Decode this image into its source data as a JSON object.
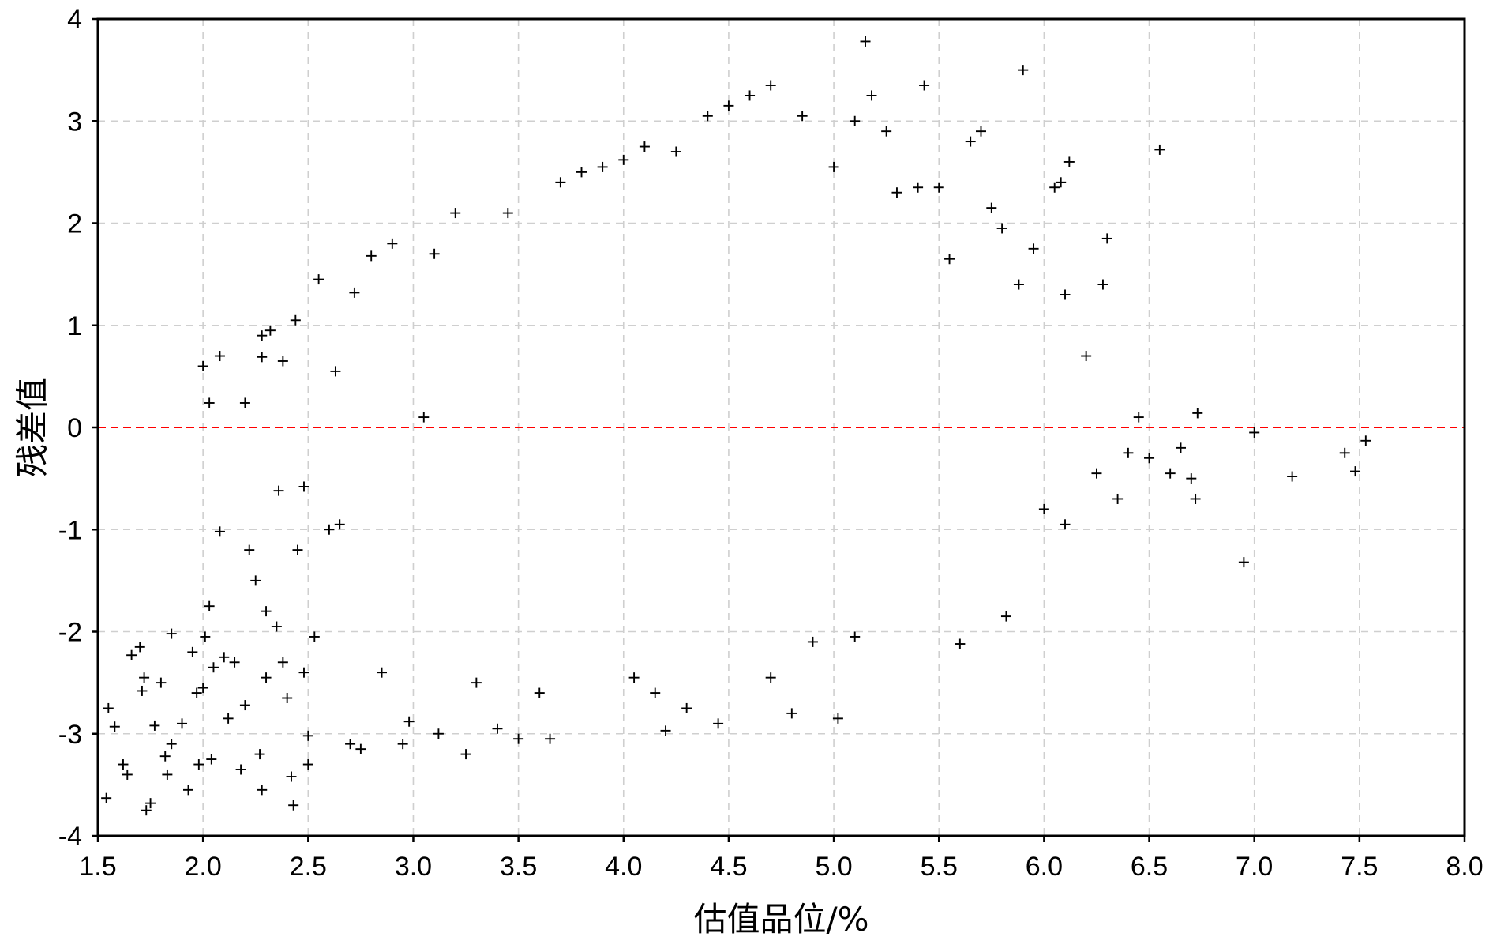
{
  "chart_data": {
    "type": "scatter",
    "title": "",
    "xlabel": "估值品位/%",
    "ylabel": "残差值",
    "xlim": [
      1.5,
      8.0
    ],
    "ylim": [
      -4,
      4
    ],
    "xticks": [
      "1.5",
      "2.0",
      "2.5",
      "3.0",
      "3.5",
      "4.0",
      "4.5",
      "5.0",
      "5.5",
      "6.0",
      "6.5",
      "7.0",
      "7.5",
      "8.0"
    ],
    "yticks": [
      "4",
      "3",
      "2",
      "1",
      "0",
      "-1",
      "-2",
      "-3",
      "-4"
    ],
    "grid": true,
    "marker": "+",
    "reference_line": {
      "y": 0,
      "color": "#ff0000",
      "style": "dashed"
    },
    "series": [
      {
        "values_note_free": true,
        "points": [
          [
            1.54,
            -3.63
          ],
          [
            1.55,
            -2.75
          ],
          [
            1.58,
            -2.93
          ],
          [
            1.62,
            -3.3
          ],
          [
            1.64,
            -3.4
          ],
          [
            1.66,
            -2.23
          ],
          [
            1.7,
            -2.15
          ],
          [
            1.71,
            -2.58
          ],
          [
            1.72,
            -2.45
          ],
          [
            1.73,
            -3.75
          ],
          [
            1.75,
            -3.68
          ],
          [
            1.77,
            -2.92
          ],
          [
            1.8,
            -2.5
          ],
          [
            1.82,
            -3.22
          ],
          [
            1.83,
            -3.4
          ],
          [
            1.85,
            -3.1
          ],
          [
            1.85,
            -2.02
          ],
          [
            1.9,
            -2.9
          ],
          [
            1.93,
            -3.55
          ],
          [
            1.95,
            -2.2
          ],
          [
            1.97,
            -2.6
          ],
          [
            1.98,
            -3.3
          ],
          [
            2.0,
            -2.55
          ],
          [
            2.0,
            0.6
          ],
          [
            2.01,
            -2.05
          ],
          [
            2.03,
            -1.75
          ],
          [
            2.03,
            0.24
          ],
          [
            2.04,
            -3.25
          ],
          [
            2.05,
            -2.35
          ],
          [
            2.08,
            0.7
          ],
          [
            2.08,
            -1.02
          ],
          [
            2.1,
            -2.25
          ],
          [
            2.12,
            -2.85
          ],
          [
            2.15,
            -2.3
          ],
          [
            2.18,
            -3.35
          ],
          [
            2.2,
            -2.72
          ],
          [
            2.2,
            0.24
          ],
          [
            2.22,
            -1.2
          ],
          [
            2.25,
            -1.5
          ],
          [
            2.27,
            -3.2
          ],
          [
            2.28,
            -3.55
          ],
          [
            2.3,
            -1.8
          ],
          [
            2.3,
            -2.45
          ],
          [
            2.28,
            0.69
          ],
          [
            2.28,
            0.9
          ],
          [
            2.32,
            0.95
          ],
          [
            2.35,
            -1.95
          ],
          [
            2.36,
            -0.62
          ],
          [
            2.38,
            0.65
          ],
          [
            2.38,
            -2.3
          ],
          [
            2.4,
            -2.65
          ],
          [
            2.42,
            -3.42
          ],
          [
            2.43,
            -3.7
          ],
          [
            2.44,
            1.05
          ],
          [
            2.45,
            -1.2
          ],
          [
            2.48,
            -2.4
          ],
          [
            2.5,
            -3.02
          ],
          [
            2.48,
            -0.58
          ],
          [
            2.5,
            -3.3
          ],
          [
            2.53,
            -2.05
          ],
          [
            2.55,
            1.45
          ],
          [
            2.6,
            -1.0
          ],
          [
            2.63,
            0.55
          ],
          [
            2.65,
            -0.95
          ],
          [
            2.7,
            -3.1
          ],
          [
            2.72,
            1.32
          ],
          [
            2.75,
            -3.15
          ],
          [
            2.8,
            1.68
          ],
          [
            2.85,
            -2.4
          ],
          [
            2.9,
            1.8
          ],
          [
            2.95,
            -3.1
          ],
          [
            2.98,
            -2.88
          ],
          [
            3.05,
            0.1
          ],
          [
            3.1,
            1.7
          ],
          [
            3.12,
            -3.0
          ],
          [
            3.2,
            2.1
          ],
          [
            3.25,
            -3.2
          ],
          [
            3.3,
            -2.5
          ],
          [
            3.4,
            -2.95
          ],
          [
            3.45,
            2.1
          ],
          [
            3.5,
            -3.05
          ],
          [
            3.6,
            -2.6
          ],
          [
            3.65,
            -3.05
          ],
          [
            3.7,
            2.4
          ],
          [
            3.8,
            2.5
          ],
          [
            3.9,
            2.55
          ],
          [
            4.0,
            2.62
          ],
          [
            4.05,
            -2.45
          ],
          [
            4.1,
            2.75
          ],
          [
            4.15,
            -2.6
          ],
          [
            4.2,
            -2.97
          ],
          [
            4.25,
            2.7
          ],
          [
            4.3,
            -2.75
          ],
          [
            4.4,
            3.05
          ],
          [
            4.45,
            -2.9
          ],
          [
            4.5,
            3.15
          ],
          [
            4.6,
            3.25
          ],
          [
            4.7,
            3.35
          ],
          [
            4.7,
            -2.45
          ],
          [
            4.8,
            -2.8
          ],
          [
            4.85,
            3.05
          ],
          [
            4.9,
            -2.1
          ],
          [
            5.0,
            2.55
          ],
          [
            5.02,
            -2.85
          ],
          [
            5.1,
            -2.05
          ],
          [
            5.1,
            3.0
          ],
          [
            5.15,
            3.78
          ],
          [
            5.18,
            3.25
          ],
          [
            5.25,
            2.9
          ],
          [
            5.3,
            2.3
          ],
          [
            5.4,
            2.35
          ],
          [
            5.43,
            3.35
          ],
          [
            5.5,
            2.35
          ],
          [
            5.55,
            1.65
          ],
          [
            5.6,
            -2.12
          ],
          [
            5.65,
            2.8
          ],
          [
            5.7,
            2.9
          ],
          [
            5.75,
            2.15
          ],
          [
            5.8,
            1.95
          ],
          [
            5.82,
            -1.85
          ],
          [
            5.88,
            1.4
          ],
          [
            5.9,
            3.5
          ],
          [
            5.95,
            1.75
          ],
          [
            6.0,
            -0.8
          ],
          [
            6.05,
            2.35
          ],
          [
            6.08,
            2.4
          ],
          [
            6.1,
            1.3
          ],
          [
            6.1,
            -0.95
          ],
          [
            6.12,
            2.6
          ],
          [
            6.2,
            0.7
          ],
          [
            6.25,
            -0.45
          ],
          [
            6.28,
            1.4
          ],
          [
            6.3,
            1.85
          ],
          [
            6.35,
            -0.7
          ],
          [
            6.4,
            -0.25
          ],
          [
            6.45,
            0.1
          ],
          [
            6.5,
            -0.3
          ],
          [
            6.55,
            2.72
          ],
          [
            6.6,
            -0.45
          ],
          [
            6.65,
            -0.2
          ],
          [
            6.7,
            -0.5
          ],
          [
            6.72,
            -0.7
          ],
          [
            6.73,
            0.14
          ],
          [
            6.95,
            -1.32
          ],
          [
            7.0,
            -0.05
          ],
          [
            7.18,
            -0.48
          ],
          [
            7.43,
            -0.25
          ],
          [
            7.48,
            -0.43
          ],
          [
            7.53,
            -0.13
          ]
        ]
      }
    ]
  }
}
